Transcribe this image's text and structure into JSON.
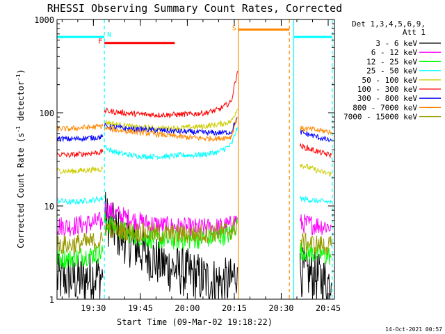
{
  "chart_data": {
    "type": "line",
    "title": "RHESSI Observing Summary Count Rates, Corrected",
    "xlabel": "Start Time (09-Mar-02 19:18:22)",
    "ylabel": "Corrected Count Rate (s",
    "ylabel_sup1": "-1",
    "ylabel_mid": " detector",
    "ylabel_sup2": "-1",
    "ylabel_end": ")",
    "x_tick_labels": [
      "19:30",
      "19:45",
      "20:00",
      "20:15",
      "20:30",
      "20:45"
    ],
    "x_tick_minutes": [
      30,
      45,
      60,
      75,
      90,
      105
    ],
    "xlim_minutes": [
      18.37,
      107.0
    ],
    "yscale": "log",
    "ylim": [
      1,
      1000
    ],
    "y_tick_labels": [
      "1",
      "10",
      "100",
      "1000"
    ],
    "y_tick_values": [
      1,
      10,
      100,
      1000
    ],
    "legend_placement": "right",
    "legend_header": [
      "Det 1,3,4,5,6,9,",
      "Att 1"
    ],
    "series": [
      {
        "name": "3 - 6 keV",
        "color": "#000000",
        "segments": [
          {
            "x": [
              18.4,
              22,
              26,
              30,
              33
            ],
            "y": [
              1.6,
              1.7,
              1.6,
              1.8,
              1.7
            ]
          },
          {
            "x": [
              33.5,
              35,
              38,
              42,
              46,
              50,
              54,
              58,
              62,
              66,
              70,
              74,
              76
            ],
            "y": [
              8.5,
              6.5,
              5,
              4,
              3.2,
              2.6,
              2.2,
              2,
              1.8,
              1.6,
              1.5,
              1.5,
              2.2
            ]
          },
          {
            "x": [
              96,
              100,
              103,
              106
            ],
            "y": [
              2.0,
              1.8,
              1.6,
              1.5
            ]
          }
        ]
      },
      {
        "name": "6 - 12 keV",
        "color": "#ff00ff",
        "segments": [
          {
            "x": [
              18.4,
              22,
              26,
              30,
              33
            ],
            "y": [
              6.2,
              6.0,
              6.3,
              6.6,
              6.8
            ]
          },
          {
            "x": [
              33.5,
              35,
              38,
              42,
              46,
              50,
              54,
              58,
              62,
              66,
              70,
              74,
              76
            ],
            "y": [
              9.5,
              9,
              8,
              7.2,
              6.6,
              6.3,
              6,
              5.9,
              5.8,
              5.8,
              5.9,
              6.2,
              7.5
            ]
          },
          {
            "x": [
              96,
              100,
              103,
              106
            ],
            "y": [
              6.5,
              6.3,
              6.2,
              6.0
            ]
          }
        ]
      },
      {
        "name": "12 - 25 keV",
        "color": "#00ff00",
        "segments": [
          {
            "x": [
              18.4,
              22,
              26,
              30,
              33
            ],
            "y": [
              2.8,
              2.7,
              2.9,
              3.0,
              3.2
            ]
          },
          {
            "x": [
              33.5,
              35,
              38,
              42,
              46,
              50,
              54,
              58,
              62,
              66,
              70,
              74,
              76
            ],
            "y": [
              7,
              6.4,
              5.6,
              5,
              4.6,
              4.4,
              4.3,
              4.3,
              4.4,
              4.5,
              4.7,
              5,
              6.5
            ]
          },
          {
            "x": [
              96,
              100,
              103,
              106
            ],
            "y": [
              3.4,
              3.1,
              3.0,
              2.9
            ]
          }
        ]
      },
      {
        "name": "25 - 50 keV",
        "color": "#00ffff",
        "segments": [
          {
            "x": [
              18.4,
              22,
              26,
              30,
              33
            ],
            "y": [
              11.5,
              11.0,
              11.2,
              11.6,
              12.0
            ]
          },
          {
            "x": [
              33.5,
              35,
              38,
              42,
              46,
              50,
              54,
              58,
              62,
              66,
              70,
              74,
              76
            ],
            "y": [
              45,
              40,
              37,
              35,
              34,
              34,
              34,
              35,
              35,
              36,
              38,
              45,
              70
            ]
          },
          {
            "x": [
              96,
              100,
              103,
              106
            ],
            "y": [
              12.0,
              11.5,
              11.2,
              11.0
            ]
          }
        ]
      },
      {
        "name": "50 - 100 keV",
        "color": "#cccc00",
        "segments": [
          {
            "x": [
              18.4,
              22,
              26,
              30,
              33
            ],
            "y": [
              24,
              23.5,
              24,
              24.5,
              25
            ]
          },
          {
            "x": [
              33.5,
              35,
              38,
              42,
              46,
              50,
              54,
              58,
              62,
              66,
              70,
              74,
              76
            ],
            "y": [
              80,
              78,
              74,
              71,
              69,
              68,
              68,
              69,
              70,
              72,
              75,
              80,
              110
            ]
          },
          {
            "x": [
              96,
              100,
              103,
              106
            ],
            "y": [
              28,
              25,
              23,
              22
            ]
          }
        ]
      },
      {
        "name": "100 - 300 keV",
        "color": "#ff0000",
        "segments": [
          {
            "x": [
              18.4,
              22,
              26,
              30,
              33
            ],
            "y": [
              36,
              35,
              36,
              37,
              38
            ]
          },
          {
            "x": [
              33.5,
              35,
              38,
              42,
              46,
              50,
              54,
              58,
              62,
              66,
              70,
              74,
              76
            ],
            "y": [
              105,
              104,
              101,
              98,
              96,
              95,
              95,
              96,
              97,
              100,
              108,
              130,
              280
            ]
          },
          {
            "x": [
              96,
              100,
              103,
              106
            ],
            "y": [
              44,
              40,
              37,
              35
            ]
          }
        ]
      },
      {
        "name": "300 - 800 keV",
        "color": "#0000ff",
        "segments": [
          {
            "x": [
              18.4,
              22,
              26,
              30,
              33
            ],
            "y": [
              53,
              52,
              53,
              54,
              55
            ]
          },
          {
            "x": [
              33.5,
              35,
              38,
              42,
              46,
              50,
              54,
              58,
              62,
              66,
              70,
              74,
              76
            ],
            "y": [
              72,
              71,
              69,
              67,
              66,
              65,
              64,
              63,
              62,
              61,
              61,
              62,
              90
            ]
          },
          {
            "x": [
              96,
              100,
              103,
              106
            ],
            "y": [
              62,
              57,
              53,
              50
            ]
          }
        ]
      },
      {
        "name": "800 - 7000 keV",
        "color": "#ff8800",
        "segments": [
          {
            "x": [
              18.4,
              22,
              26,
              30,
              33
            ],
            "y": [
              68,
              67,
              69,
              70,
              72
            ]
          },
          {
            "x": [
              33.5,
              35,
              38,
              42,
              46,
              50,
              54,
              58,
              62,
              66,
              70,
              74,
              76
            ],
            "y": [
              68,
              67,
              65,
              63,
              61,
              59,
              57,
              55,
              54,
              53,
              53,
              55,
              90
            ]
          },
          {
            "x": [
              96,
              100,
              103,
              106
            ],
            "y": [
              68,
              66,
              64,
              62
            ]
          }
        ]
      },
      {
        "name": "7000 - 15000 keV",
        "color": "#999900",
        "segments": [
          {
            "x": [
              18.4,
              22,
              26,
              30,
              33
            ],
            "y": [
              3.9,
              3.8,
              4.0,
              4.1,
              4.2
            ]
          },
          {
            "x": [
              33.5,
              35,
              38,
              42,
              46,
              50,
              54,
              58,
              62,
              66,
              70,
              74,
              76
            ],
            "y": [
              6.0,
              5.8,
              5.5,
              5.3,
              5.2,
              5.1,
              5.0,
              5.0,
              5.0,
              5.1,
              5.2,
              5.5,
              6.5
            ]
          },
          {
            "x": [
              96,
              100,
              103,
              106
            ],
            "y": [
              4.1,
              3.9,
              3.8,
              3.7
            ]
          }
        ]
      }
    ],
    "annotations": [
      {
        "label": "N",
        "color": "#00ffff",
        "type": "night",
        "intervals": [
          [
            18.4,
            33.5
          ],
          [
            94,
            106.3
          ]
        ],
        "y": 650
      },
      {
        "label": "F",
        "color": "#ff0000",
        "type": "flare",
        "intervals": [
          [
            33.5,
            56
          ]
        ],
        "y": 560
      },
      {
        "label": "S",
        "color": "#ff8800",
        "type": "saa",
        "intervals": [
          [
            76.3,
            92.6
          ]
        ],
        "y": 780
      }
    ],
    "vertical_markers": [
      {
        "x": 33.5,
        "color": "#00ffff",
        "style": "dashed"
      },
      {
        "x": 94.0,
        "color": "#00ffff",
        "style": "solid"
      },
      {
        "x": 106.3,
        "color": "#00ffff",
        "style": "dashed"
      },
      {
        "x": 76.3,
        "color": "#ff8800",
        "style": "solid"
      },
      {
        "x": 92.6,
        "color": "#ff8800",
        "style": "dashed"
      }
    ]
  },
  "footer_date": "14-Oct-2021 00:57"
}
